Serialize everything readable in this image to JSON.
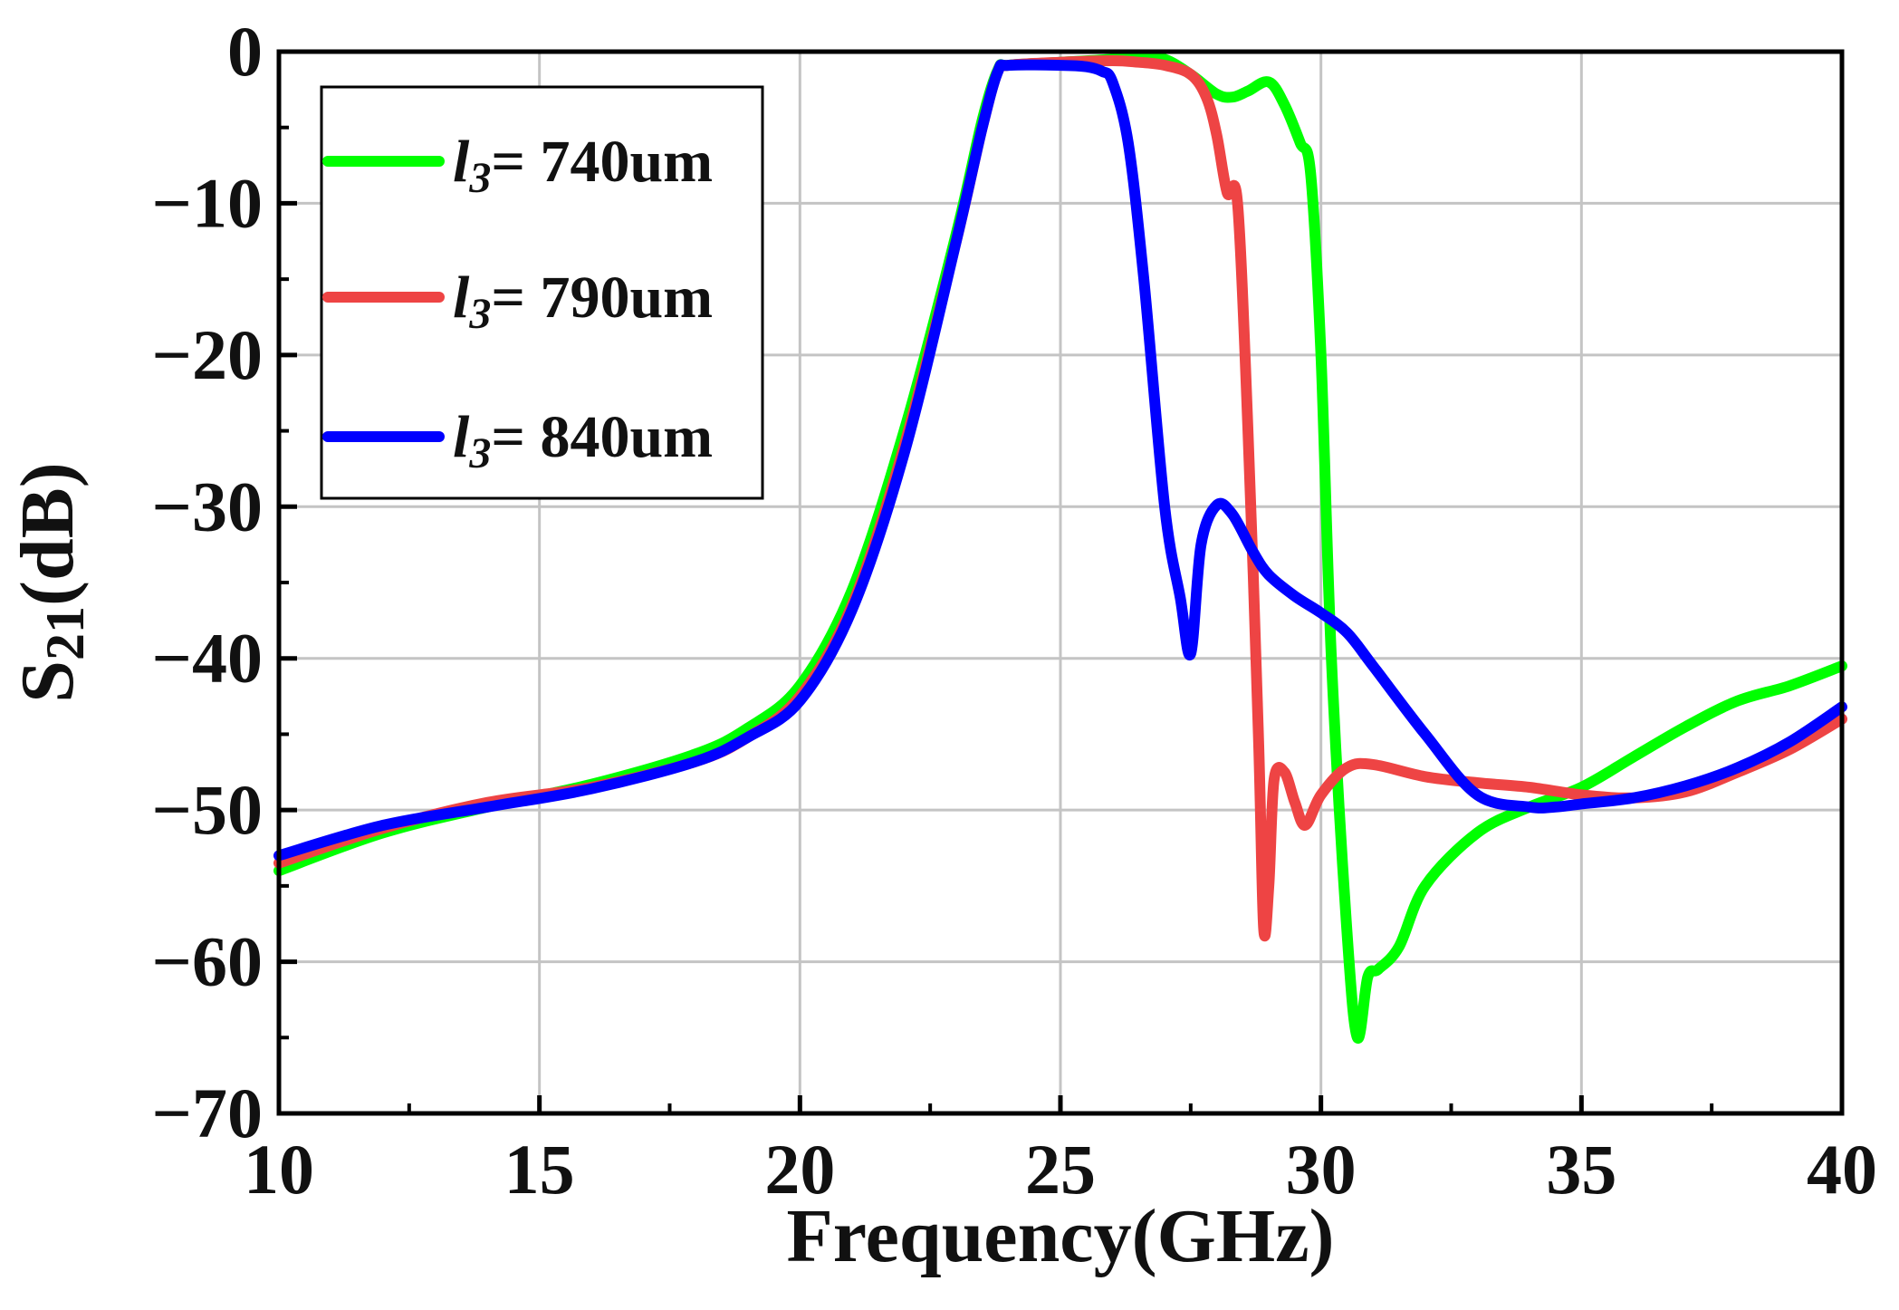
{
  "chart_data": {
    "type": "line",
    "title": "",
    "xlabel": "Frequency(GHz)",
    "ylabel_main": "S",
    "ylabel_sub": "21",
    "ylabel_tail": "(dB)",
    "xlim": [
      10,
      40
    ],
    "ylim": [
      -70,
      0
    ],
    "xticks": [
      10,
      15,
      20,
      25,
      30,
      35,
      40
    ],
    "xtick_labels": [
      "10",
      "15",
      "20",
      "25",
      "30",
      "35",
      "40"
    ],
    "yticks": [
      0,
      -10,
      -20,
      -30,
      -40,
      -50,
      -60,
      -70
    ],
    "ytick_labels": [
      "0",
      "−10",
      "−20",
      "−30",
      "−40",
      "−50",
      "−60",
      "−70"
    ],
    "grid": true,
    "legend_position": "top-left",
    "legend_symbol": "l",
    "legend_symbol_sub": "3",
    "series": [
      {
        "name": "l3= 740um",
        "value_text": "= 740um",
        "color": "#00ff00",
        "x": [
          10,
          12,
          14,
          16,
          18,
          19,
          20,
          21,
          22,
          23,
          23.5,
          23.8,
          24,
          25,
          26,
          26.5,
          27,
          27.5,
          28,
          28.3,
          28.6,
          29,
          29.3,
          29.6,
          29.8,
          30,
          30.2,
          30.5,
          30.7,
          30.9,
          31.1,
          31.5,
          32,
          33,
          34,
          35,
          36,
          37,
          38,
          39,
          40
        ],
        "y": [
          -54,
          -51.5,
          -49.8,
          -48.3,
          -46.3,
          -44.6,
          -41.8,
          -35.5,
          -25,
          -12,
          -4.5,
          -1.2,
          -0.9,
          -0.7,
          -0.5,
          -0.3,
          -0.5,
          -1.5,
          -2.8,
          -3,
          -2.6,
          -2,
          -3.5,
          -6,
          -8,
          -20,
          -40,
          -58,
          -65,
          -61,
          -60.5,
          -59,
          -55,
          -51.5,
          -49.8,
          -48.5,
          -46.5,
          -44.5,
          -42.8,
          -41.8,
          -40.5
        ]
      },
      {
        "name": "l3= 790um",
        "value_text": "= 790um",
        "color": "#ee4444",
        "x": [
          10,
          12,
          14,
          16,
          18,
          19,
          20,
          21,
          22,
          23,
          23.5,
          23.8,
          24,
          25,
          26,
          26.5,
          27,
          27.5,
          27.8,
          28,
          28.2,
          28.4,
          28.6,
          28.8,
          28.9,
          29,
          29.1,
          29.3,
          29.5,
          29.7,
          30,
          30.5,
          31,
          32,
          33,
          34,
          35,
          36,
          37,
          38,
          39,
          40
        ],
        "y": [
          -53.5,
          -51.2,
          -49.5,
          -48.5,
          -46.8,
          -45.2,
          -42.5,
          -36.5,
          -26,
          -12.5,
          -5,
          -1.3,
          -0.9,
          -0.7,
          -0.6,
          -0.7,
          -0.9,
          -1.5,
          -3,
          -5.5,
          -9.3,
          -10,
          -25,
          -45,
          -57.8,
          -55,
          -48,
          -47.5,
          -49.5,
          -51,
          -49,
          -47.2,
          -47,
          -47.8,
          -48.2,
          -48.5,
          -49,
          -49.2,
          -48.8,
          -47.5,
          -46,
          -44
        ]
      },
      {
        "name": "l3= 840um",
        "value_text": "= 840um",
        "color": "#0000ff",
        "x": [
          10,
          12,
          14,
          16,
          18,
          19,
          20,
          21,
          22,
          23,
          23.5,
          23.8,
          24,
          25,
          25.5,
          25.8,
          26,
          26.3,
          26.6,
          27,
          27.3,
          27.5,
          27.7,
          28,
          28.3,
          28.7,
          29,
          29.5,
          30,
          30.5,
          31,
          32,
          33,
          34,
          34.5,
          35,
          36,
          37,
          38,
          39,
          40
        ],
        "y": [
          -53,
          -51,
          -49.8,
          -48.6,
          -46.8,
          -45.2,
          -42.8,
          -36.8,
          -26.5,
          -12.5,
          -5,
          -1.3,
          -0.9,
          -0.9,
          -1,
          -1.3,
          -2,
          -6,
          -15,
          -30,
          -36,
          -39.7,
          -32.5,
          -29.9,
          -30.5,
          -33,
          -34.5,
          -35.9,
          -37,
          -38.3,
          -40.5,
          -45,
          -49,
          -49.8,
          -49.8,
          -49.6,
          -49.2,
          -48.4,
          -47.2,
          -45.5,
          -43.2
        ]
      }
    ]
  }
}
